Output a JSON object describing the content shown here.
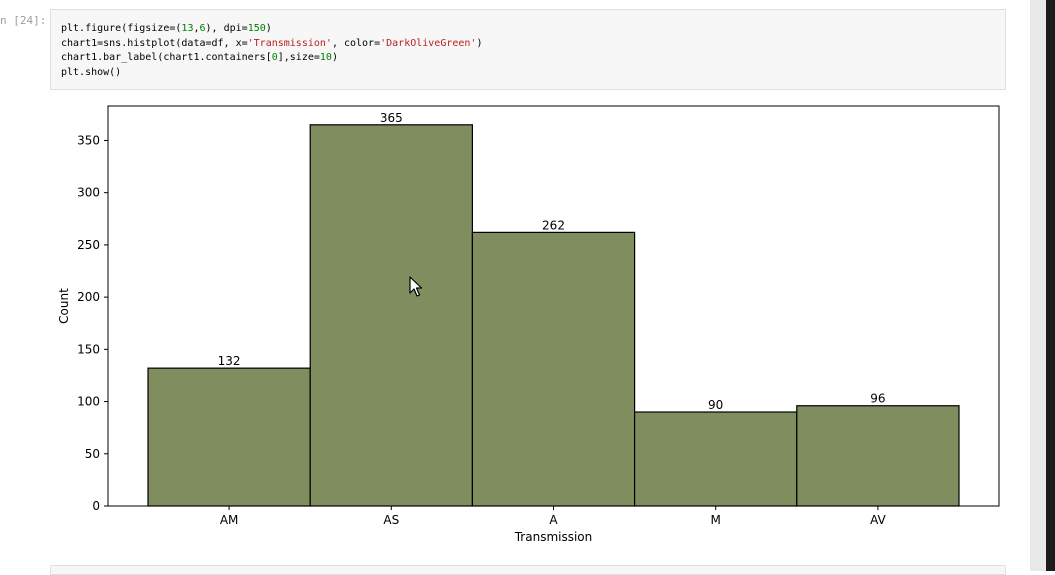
{
  "notebook": {
    "prompt": "n [24]:",
    "code_lines": [
      [
        {
          "t": "plt.figure(figsize=("
        },
        {
          "t": "13",
          "c": "tk-num"
        },
        {
          "t": ","
        },
        {
          "t": "6",
          "c": "tk-num"
        },
        {
          "t": "), dpi="
        },
        {
          "t": "150",
          "c": "tk-num"
        },
        {
          "t": ")"
        }
      ],
      [
        {
          "t": "chart1=sns.histplot(data=df, x="
        },
        {
          "t": "'Transmission'",
          "c": "tk-str"
        },
        {
          "t": ", color="
        },
        {
          "t": "'DarkOliveGreen'",
          "c": "tk-str"
        },
        {
          "t": ")"
        }
      ],
      [
        {
          "t": "chart1.bar_label(chart1.containers["
        },
        {
          "t": "0",
          "c": "tk-num"
        },
        {
          "t": "],size="
        },
        {
          "t": "10",
          "c": "tk-num"
        },
        {
          "t": ")"
        }
      ],
      [
        {
          "t": "plt.show()"
        }
      ]
    ]
  },
  "chart_data": {
    "type": "bar",
    "categories": [
      "AM",
      "AS",
      "A",
      "M",
      "AV"
    ],
    "values": [
      132,
      365,
      262,
      90,
      96
    ],
    "data_labels": [
      "132",
      "365",
      "262",
      "90",
      "96"
    ],
    "xlabel": "Transmission",
    "ylabel": "Count",
    "ylim": [
      0,
      383
    ],
    "yticks": [
      0,
      50,
      100,
      150,
      200,
      250,
      300,
      350
    ],
    "grid": false,
    "bar_color": "#808d5f",
    "edge_color": "#000000"
  }
}
